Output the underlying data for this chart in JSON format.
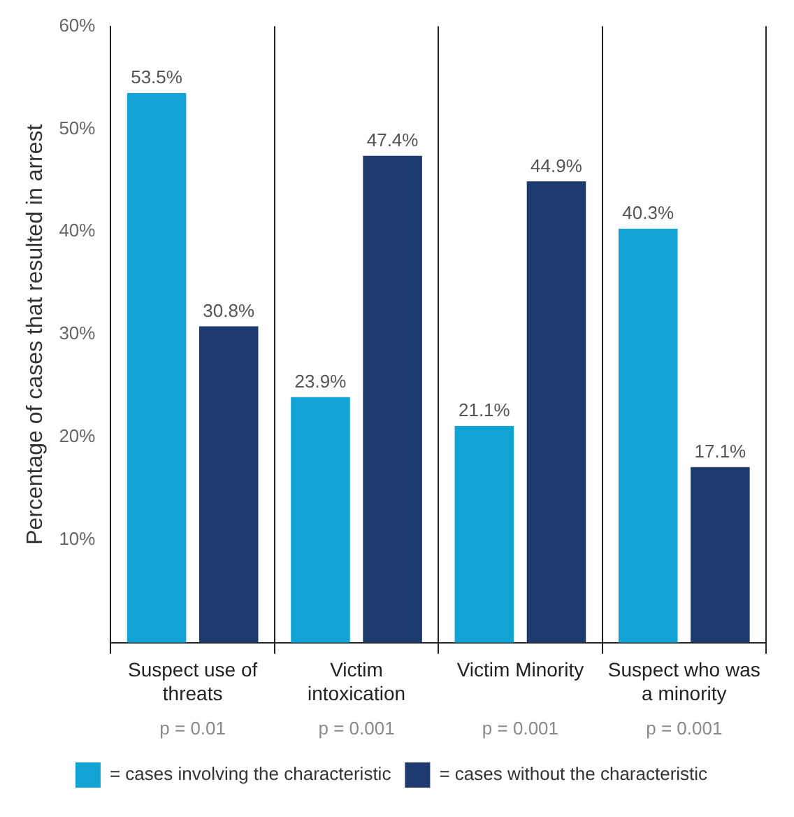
{
  "chart_data": {
    "type": "bar",
    "ylabel": "Percentage of cases that resulted in arrest",
    "categories": [
      "Suspect use of threats",
      "Victim intoxication",
      "Victim Minority",
      "Suspect who was a minority"
    ],
    "series": [
      {
        "name": "= cases involving the characteristic",
        "color": "#12a3d5",
        "values": [
          53.5,
          23.9,
          21.1,
          40.3
        ],
        "value_labels": [
          "53.5%",
          "23.9%",
          "21.1%",
          "40.3%"
        ]
      },
      {
        "name": "= cases without the characteristic",
        "color": "#1c3a6e",
        "values": [
          30.8,
          47.4,
          44.9,
          17.1
        ],
        "value_labels": [
          "30.8%",
          "47.4%",
          "44.9%",
          "17.1%"
        ]
      }
    ],
    "ylim": [
      0,
      60
    ],
    "yticks": [
      {
        "value": 0,
        "label": null
      },
      {
        "value": 10,
        "label": "10%"
      },
      {
        "value": 20,
        "label": "20%"
      },
      {
        "value": 30,
        "label": "30%"
      },
      {
        "value": 40,
        "label": "40%"
      },
      {
        "value": 50,
        "label": "50%"
      },
      {
        "value": 60,
        "label": "60%"
      }
    ],
    "grid": "x",
    "legend": "bottom",
    "annotations": [
      "p = 0.01",
      "p = 0.001",
      "p = 0.001",
      "p = 0.001"
    ]
  }
}
